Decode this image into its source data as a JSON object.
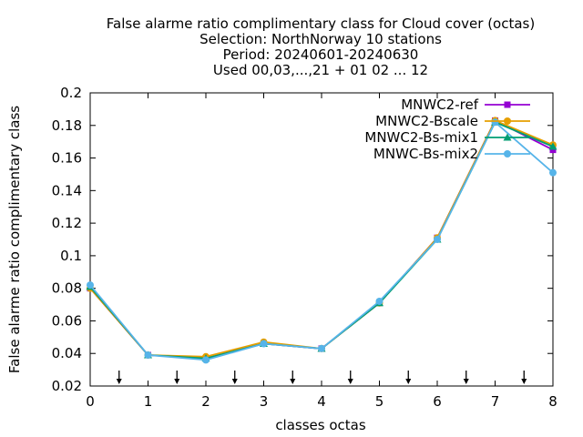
{
  "chart_data": {
    "type": "line",
    "title_lines": [
      "False alarme ratio complimentary class  for Cloud cover (octas)",
      "Selection: NorthNorway     10 stations",
      "Period: 20240601-20240630",
      "Used 00,03,...,21 + 01 02 ... 12"
    ],
    "xlabel": "classes octas",
    "ylabel": "False alarme ratio complimentary class",
    "xlim": [
      0,
      8
    ],
    "ylim": [
      0.02,
      0.2
    ],
    "x_ticks": [
      "0",
      "1",
      "2",
      "3",
      "4",
      "5",
      "6",
      "7",
      "8"
    ],
    "y_ticks": [
      "0.02",
      "0.04",
      "0.06",
      "0.08",
      "0.1",
      "0.12",
      "0.14",
      "0.16",
      "0.18",
      "0.2"
    ],
    "grid": false,
    "legend_position": "top-right",
    "arrow_markers_x": [
      0.5,
      1.5,
      2.5,
      3.5,
      4.5,
      5.5,
      6.5,
      7.5
    ],
    "x": [
      0,
      1,
      2,
      3,
      4,
      5,
      6,
      7,
      8
    ],
    "series": [
      {
        "name": "MNWC2-ref",
        "color": "#9400d3",
        "marker": "square",
        "values": [
          0.08,
          0.039,
          0.037,
          0.046,
          0.043,
          0.071,
          0.111,
          0.183,
          0.165
        ]
      },
      {
        "name": "MNWC2-Bscale",
        "color": "#e69f00",
        "marker": "circle",
        "values": [
          0.08,
          0.039,
          0.038,
          0.047,
          0.043,
          0.071,
          0.111,
          0.183,
          0.168
        ]
      },
      {
        "name": "MNWC2-Bs-mix1",
        "color": "#009e73",
        "marker": "triangle",
        "values": [
          0.081,
          0.039,
          0.037,
          0.046,
          0.043,
          0.071,
          0.11,
          0.182,
          0.167
        ]
      },
      {
        "name": "MNWC-Bs-mix2",
        "color": "#56b4e9",
        "marker": "circle",
        "values": [
          0.082,
          0.039,
          0.036,
          0.046,
          0.043,
          0.072,
          0.11,
          0.182,
          0.151
        ]
      }
    ]
  }
}
